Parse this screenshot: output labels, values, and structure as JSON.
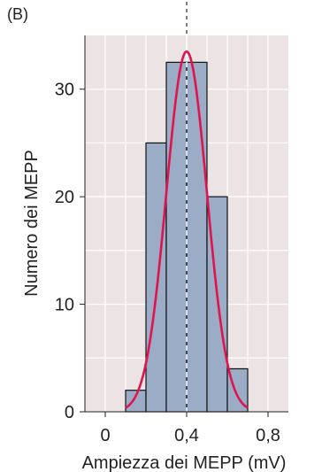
{
  "chart_data": {
    "type": "bar",
    "panel_label": "(B)",
    "xlabel": "Ampiezza dei MEPP (mV)",
    "ylabel": "Numero dei MEPP",
    "x_ticks": [
      {
        "value": 0,
        "label": "0"
      },
      {
        "value": 0.4,
        "label": "0,4"
      },
      {
        "value": 0.8,
        "label": "0,8"
      }
    ],
    "y_ticks": [
      {
        "value": 0,
        "label": "0"
      },
      {
        "value": 10,
        "label": "10"
      },
      {
        "value": 20,
        "label": "20"
      },
      {
        "value": 30,
        "label": "30"
      }
    ],
    "xlim": [
      -0.1,
      0.9
    ],
    "ylim": [
      0,
      35
    ],
    "bin_width": 0.1,
    "bins": [
      {
        "start": 0.1,
        "end": 0.2,
        "count": 2
      },
      {
        "start": 0.2,
        "end": 0.3,
        "count": 25
      },
      {
        "start": 0.3,
        "end": 0.4,
        "count": 32.5
      },
      {
        "start": 0.4,
        "end": 0.5,
        "count": 32.5
      },
      {
        "start": 0.5,
        "end": 0.6,
        "count": 20
      },
      {
        "start": 0.6,
        "end": 0.7,
        "count": 4
      }
    ],
    "fit_curve": {
      "type": "gaussian",
      "mean": 0.4,
      "sd": 0.1,
      "peak": 33.5
    },
    "mean_marker": 0.4,
    "grid": true,
    "colors": {
      "bar_fill": "#9bacc7",
      "bar_stroke": "#111111",
      "curve": "#e0134f",
      "grid_background": "#ece4e4",
      "grid_line": "#ffffff",
      "mean_line": "#ffffff",
      "mean_line_outside": "#222222"
    }
  }
}
